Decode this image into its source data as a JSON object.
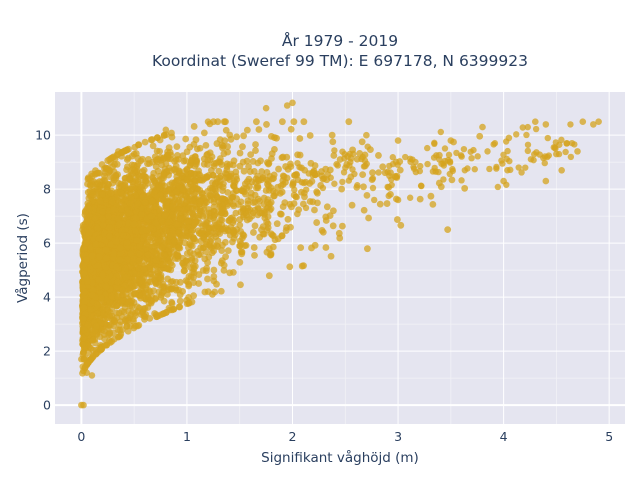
{
  "chart_data": {
    "type": "scatter",
    "title_lines": [
      "År 1979 - 2019",
      "Koordinat (Sweref 99 TM): E 697178, N 6399923"
    ],
    "xlabel": "Signifikant våghöjd (m)",
    "ylabel": "Vågperiod (s)",
    "xlim": [
      -0.25,
      5.15
    ],
    "ylim": [
      -0.7,
      11.6
    ],
    "x_ticks": [
      0,
      1,
      2,
      3,
      4,
      5
    ],
    "y_ticks": [
      0,
      2,
      4,
      6,
      8,
      10
    ],
    "grid": true,
    "legend": "none",
    "series": [
      {
        "marker_color": "#d4a31e",
        "marker_opacity": 0.75,
        "approx_point_count": 60000,
        "representative_points": [
          {
            "x": 0.0,
            "y": 0.0
          },
          {
            "x": 0.02,
            "y": 0.0
          },
          {
            "x": 0.0,
            "y": 1.7
          },
          {
            "x": 0.05,
            "y": 1.2
          },
          {
            "x": 0.1,
            "y": 1.1
          },
          {
            "x": 0.02,
            "y": 3.2
          },
          {
            "x": 0.05,
            "y": 6.0
          },
          {
            "x": 0.2,
            "y": 7.8
          },
          {
            "x": 0.5,
            "y": 9.3
          },
          {
            "x": 0.8,
            "y": 10.2
          },
          {
            "x": 1.2,
            "y": 10.5
          },
          {
            "x": 1.75,
            "y": 11.0
          },
          {
            "x": 1.95,
            "y": 11.1
          },
          {
            "x": 2.0,
            "y": 11.2
          },
          {
            "x": 3.0,
            "y": 9.8
          },
          {
            "x": 3.5,
            "y": 9.8
          },
          {
            "x": 3.8,
            "y": 10.3
          },
          {
            "x": 4.05,
            "y": 9.9
          },
          {
            "x": 4.3,
            "y": 10.5
          },
          {
            "x": 4.4,
            "y": 10.4
          },
          {
            "x": 4.5,
            "y": 9.3
          },
          {
            "x": 4.6,
            "y": 9.7
          },
          {
            "x": 4.7,
            "y": 9.4
          },
          {
            "x": 4.75,
            "y": 10.5
          },
          {
            "x": 4.85,
            "y": 10.4
          },
          {
            "x": 4.9,
            "y": 10.5
          },
          {
            "x": 4.4,
            "y": 8.3
          },
          {
            "x": 4.55,
            "y": 8.7
          },
          {
            "x": 4.0,
            "y": 8.3
          },
          {
            "x": 2.7,
            "y": 10.0
          },
          {
            "x": 0.35,
            "y": 9.4
          },
          {
            "x": 1.5,
            "y": 5.9
          },
          {
            "x": 3.0,
            "y": 7.6
          }
        ]
      }
    ]
  }
}
